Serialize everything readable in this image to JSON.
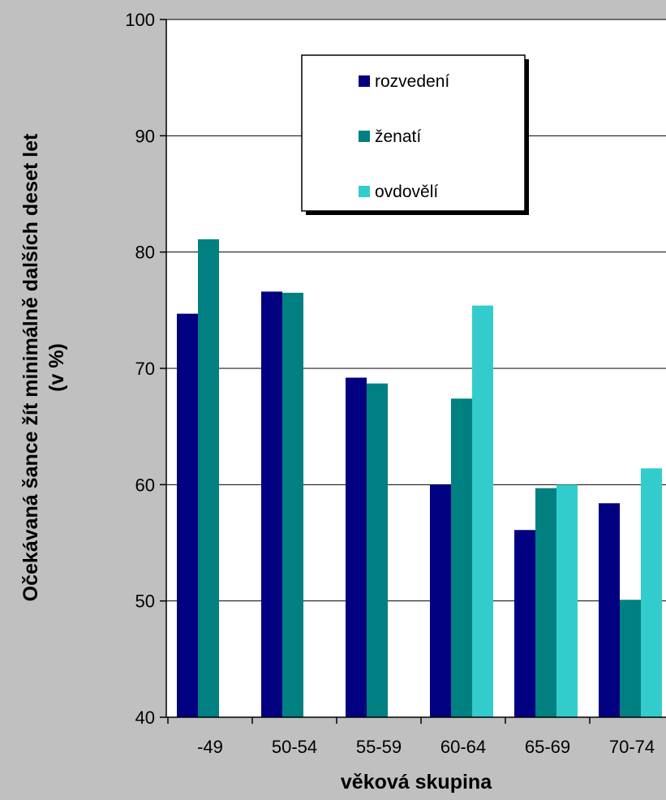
{
  "chart_data": {
    "type": "bar",
    "title": "",
    "xlabel": "věková skupina",
    "ylabel_line1": "Očekávaná šance žít minimálně dalších deset  let",
    "ylabel_line2": "(v %)",
    "categories": [
      "-49",
      "50-54",
      "55-59",
      "60-64",
      "65-69",
      "70-74"
    ],
    "series": [
      {
        "name": "rozvedení",
        "color": "#000080",
        "values": [
          74.7,
          76.6,
          69.2,
          60.0,
          56.1,
          58.4
        ]
      },
      {
        "name": "ženatí",
        "color": "#008080",
        "values": [
          81.1,
          76.5,
          68.7,
          67.4,
          59.7,
          50.1
        ]
      },
      {
        "name": "ovdovělí",
        "color": "#33cccc",
        "values": [
          null,
          null,
          null,
          75.4,
          60.0,
          61.4
        ]
      }
    ],
    "ylim": [
      40,
      100
    ],
    "yticks": [
      "40",
      "50",
      "60",
      "70",
      "80",
      "90",
      "100"
    ],
    "grid": true,
    "legend_position": "top-center",
    "plot_background": "#ffffff",
    "background": "#c0c0c0"
  }
}
